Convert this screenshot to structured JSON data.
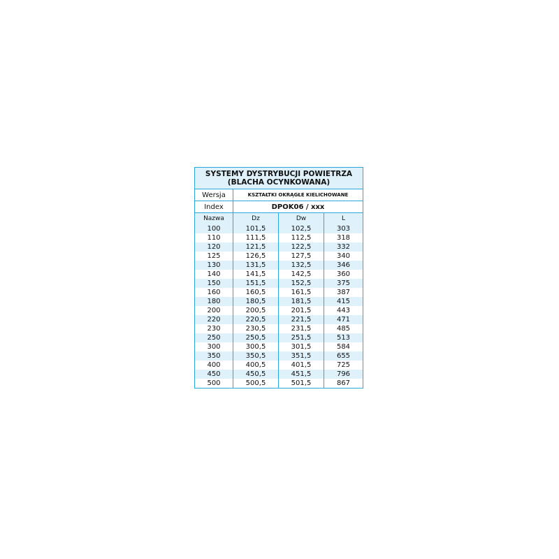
{
  "title_line1": "SYSTEMY DYSTRYBUCJI POWIETRZA",
  "title_line2": "(BLACHA OCYNKOWANA)",
  "wersja_label": "Wersja",
  "wersja_value": "KSZTAŁTKI OKRĄGŁE KIELICHOWANE",
  "index_label": "Index",
  "index_value": "DPOK06 / xxx",
  "columns": [
    "Nazwa",
    "Dz",
    "Dw",
    "L"
  ],
  "rows": [
    [
      "100",
      "101,5",
      "102,5",
      "303"
    ],
    [
      "110",
      "111,5",
      "112,5",
      "318"
    ],
    [
      "120",
      "121,5",
      "122,5",
      "332"
    ],
    [
      "125",
      "126,5",
      "127,5",
      "340"
    ],
    [
      "130",
      "131,5",
      "132,5",
      "346"
    ],
    [
      "140",
      "141,5",
      "142,5",
      "360"
    ],
    [
      "150",
      "151,5",
      "152,5",
      "375"
    ],
    [
      "160",
      "160,5",
      "161,5",
      "387"
    ],
    [
      "180",
      "180,5",
      "181,5",
      "415"
    ],
    [
      "200",
      "200,5",
      "201,5",
      "443"
    ],
    [
      "220",
      "220,5",
      "221,5",
      "471"
    ],
    [
      "230",
      "230,5",
      "231,5",
      "485"
    ],
    [
      "250",
      "250,5",
      "251,5",
      "513"
    ],
    [
      "300",
      "300,5",
      "301,5",
      "584"
    ],
    [
      "350",
      "350,5",
      "351,5",
      "655"
    ],
    [
      "400",
      "400,5",
      "401,5",
      "725"
    ],
    [
      "450",
      "450,5",
      "451,5",
      "796"
    ],
    [
      "500",
      "500,5",
      "501,5",
      "867"
    ]
  ],
  "colors": {
    "border": "#29a8e0",
    "stripe": "#dff1fb"
  }
}
